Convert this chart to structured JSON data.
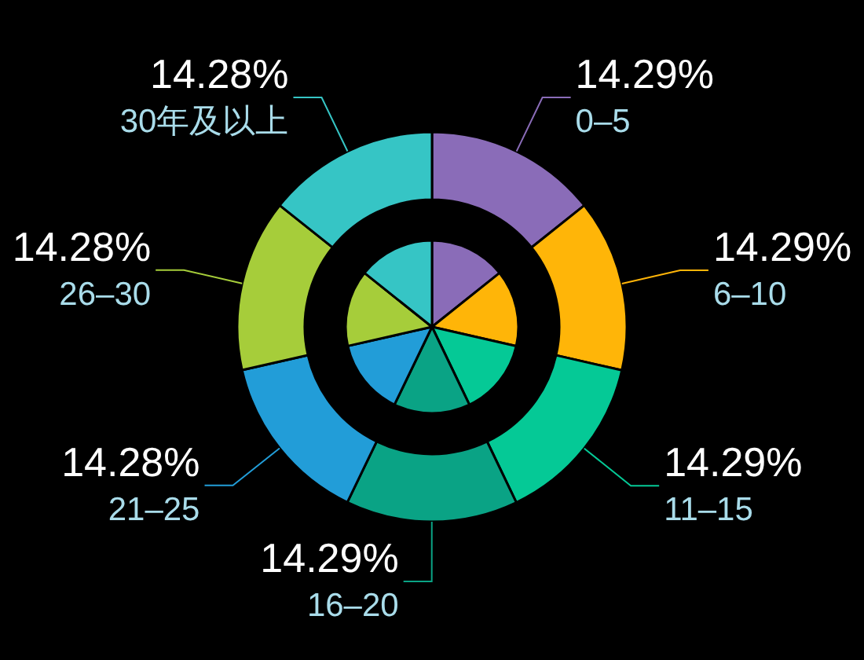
{
  "chart_data": [
    {
      "type": "donut",
      "categories": [
        "0–5",
        "6–10",
        "11–15",
        "16–20",
        "21–25",
        "26–30",
        "30年及以上"
      ],
      "values": [
        14.29,
        14.29,
        14.29,
        14.29,
        14.28,
        14.28,
        14.28
      ],
      "value_labels": [
        "14.29%",
        "14.29%",
        "14.29%",
        "14.29%",
        "14.28%",
        "14.28%",
        "14.28%"
      ],
      "colors": [
        "#8a6cb8",
        "#ffb508",
        "#05c996",
        "#0aa385",
        "#229dd8",
        "#a6cd3a",
        "#36c5c5"
      ]
    },
    {
      "type": "pie",
      "categories": [
        null,
        null,
        null,
        null,
        null,
        null,
        null
      ],
      "values": [
        14.29,
        14.29,
        14.29,
        14.29,
        14.28,
        14.28,
        14.28
      ],
      "colors": [
        "#8a6cb8",
        "#ffb508",
        "#05c996",
        "#0aa385",
        "#229dd8",
        "#a6cd3a",
        "#36c5c5"
      ]
    }
  ]
}
